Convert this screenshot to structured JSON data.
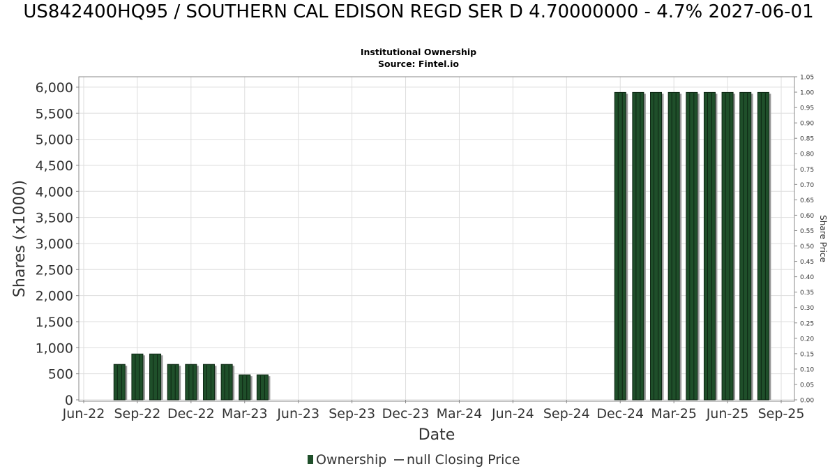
{
  "header": {
    "title": "US842400HQ95 / SOUTHERN CAL EDISON REGD SER D 4.70000000 - 4.7% 2027-06-01",
    "subtitle1": "Institutional Ownership",
    "subtitle2": "Source: Fintel.io"
  },
  "legend": {
    "ownership_label": "Ownership",
    "price_label": "null Closing Price"
  },
  "colors": {
    "bar": "#1f4f2a",
    "bar_dark": "#0d2613",
    "bar_shadow": "#9a9a9a",
    "grid": "#dedede",
    "frame": "#888888",
    "price_line": "#555555"
  },
  "chart_data": {
    "type": "bar",
    "title": "Institutional Ownership",
    "xlabel": "Date",
    "ylabel": "Shares (x1000)",
    "y2label": "Share Price",
    "ylim": [
      0,
      6200
    ],
    "y2lim": [
      0,
      1.05
    ],
    "yticks": [
      0,
      500,
      1000,
      1500,
      2000,
      2500,
      3000,
      3500,
      4000,
      4500,
      5000,
      5500,
      6000
    ],
    "ytick_labels": [
      "0",
      "500",
      "1,000",
      "1,500",
      "2,000",
      "2,500",
      "3,000",
      "3,500",
      "4,000",
      "4,500",
      "5,000",
      "5,500",
      "6,000"
    ],
    "y2ticks": [
      "0.00",
      "0.05",
      "0.10",
      "0.15",
      "0.20",
      "0.25",
      "0.30",
      "0.35",
      "0.40",
      "0.45",
      "0.50",
      "0.55",
      "0.60",
      "0.65",
      "0.70",
      "0.75",
      "0.80",
      "0.85",
      "0.90",
      "0.95",
      "1.00",
      "1.05"
    ],
    "xticks": [
      "Jun-22",
      "Sep-22",
      "Dec-22",
      "Mar-23",
      "Jun-23",
      "Sep-23",
      "Dec-23",
      "Mar-24",
      "Jun-24",
      "Sep-24",
      "Dec-24",
      "Mar-25",
      "Jun-25",
      "Sep-25"
    ],
    "grid": true,
    "legend_position": "bottom",
    "series": [
      {
        "name": "Ownership",
        "x": [
          "2022-08-01",
          "2022-09-01",
          "2022-10-01",
          "2022-11-01",
          "2022-12-01",
          "2023-01-01",
          "2023-02-01",
          "2023-03-01",
          "2023-04-01",
          "2024-12-01",
          "2025-01-01",
          "2025-02-01",
          "2025-03-01",
          "2025-04-01",
          "2025-05-01",
          "2025-06-01",
          "2025-07-01",
          "2025-08-01"
        ],
        "values": [
          680,
          880,
          880,
          680,
          680,
          680,
          680,
          480,
          480,
          5900,
          5900,
          5900,
          5900,
          5900,
          5900,
          5900,
          5900,
          5900
        ]
      },
      {
        "name": "null Closing Price",
        "x": [],
        "values": []
      }
    ]
  }
}
